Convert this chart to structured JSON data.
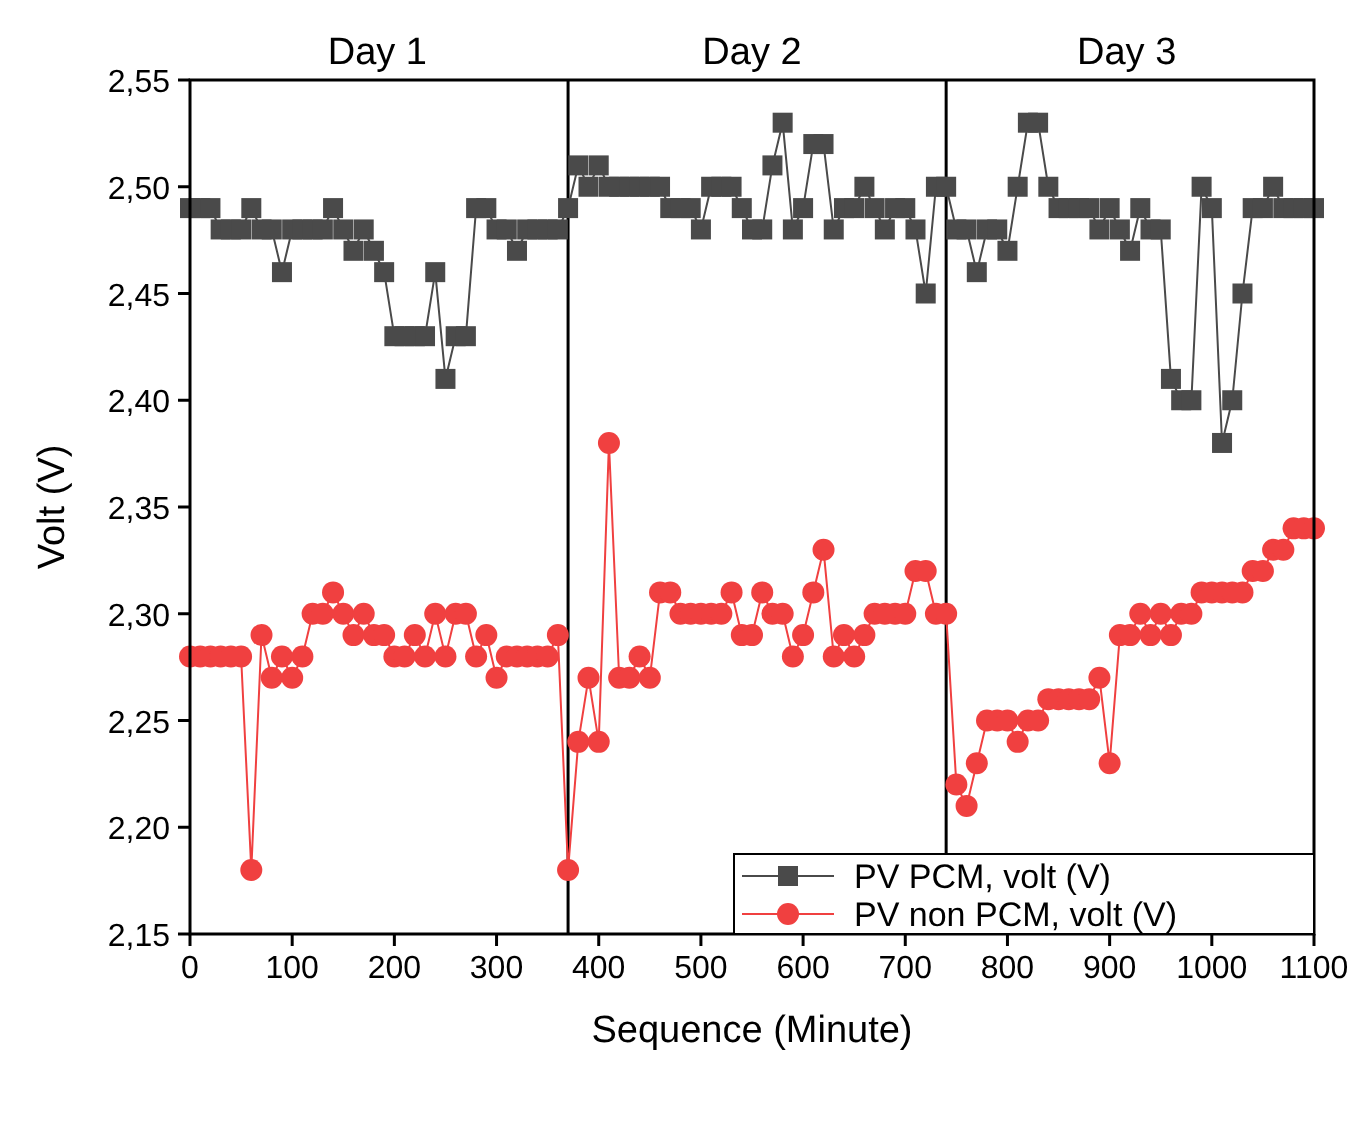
{
  "chart_data": {
    "type": "line",
    "xlabel": "Sequence (Minute)",
    "ylabel": "Volt (V)",
    "x": [
      0,
      10,
      20,
      30,
      40,
      50,
      60,
      70,
      80,
      90,
      100,
      110,
      120,
      130,
      140,
      150,
      160,
      170,
      180,
      190,
      200,
      210,
      220,
      230,
      240,
      250,
      260,
      270,
      280,
      290,
      300,
      310,
      320,
      330,
      340,
      350,
      360,
      370,
      380,
      390,
      400,
      410,
      420,
      430,
      440,
      450,
      460,
      470,
      480,
      490,
      500,
      510,
      520,
      530,
      540,
      550,
      560,
      570,
      580,
      590,
      600,
      610,
      620,
      630,
      640,
      650,
      660,
      670,
      680,
      690,
      700,
      710,
      720,
      730,
      740,
      750,
      760,
      770,
      780,
      790,
      800,
      810,
      820,
      830,
      840,
      850,
      860,
      870,
      880,
      890,
      900,
      910,
      920,
      930,
      940,
      950,
      960,
      970,
      980,
      990,
      1000,
      1010,
      1020,
      1030,
      1040,
      1050,
      1060,
      1070,
      1080,
      1090,
      1100
    ],
    "series": [
      {
        "name": "PV PCM, volt (V)",
        "color": "#4a4a4a",
        "marker": "square",
        "values": [
          2.49,
          2.49,
          2.49,
          2.48,
          2.48,
          2.48,
          2.49,
          2.48,
          2.48,
          2.46,
          2.48,
          2.48,
          2.48,
          2.48,
          2.49,
          2.48,
          2.47,
          2.48,
          2.47,
          2.46,
          2.43,
          2.43,
          2.43,
          2.43,
          2.46,
          2.41,
          2.43,
          2.43,
          2.49,
          2.49,
          2.48,
          2.48,
          2.47,
          2.48,
          2.48,
          2.48,
          2.48,
          2.49,
          2.51,
          2.5,
          2.51,
          2.5,
          2.5,
          2.5,
          2.5,
          2.5,
          2.5,
          2.49,
          2.49,
          2.49,
          2.48,
          2.5,
          2.5,
          2.5,
          2.49,
          2.48,
          2.48,
          2.51,
          2.53,
          2.48,
          2.49,
          2.52,
          2.52,
          2.48,
          2.49,
          2.49,
          2.5,
          2.49,
          2.48,
          2.49,
          2.49,
          2.48,
          2.45,
          2.5,
          2.5,
          2.48,
          2.48,
          2.46,
          2.48,
          2.48,
          2.47,
          2.5,
          2.53,
          2.53,
          2.5,
          2.49,
          2.49,
          2.49,
          2.49,
          2.48,
          2.49,
          2.48,
          2.47,
          2.49,
          2.48,
          2.48,
          2.41,
          2.4,
          2.4,
          2.5,
          2.49,
          2.38,
          2.4,
          2.45,
          2.49,
          2.49,
          2.5,
          2.49,
          2.49,
          2.49,
          2.49
        ]
      },
      {
        "name": "PV non PCM, volt (V)",
        "color": "#f04040",
        "marker": "circle",
        "values": [
          2.28,
          2.28,
          2.28,
          2.28,
          2.28,
          2.28,
          2.18,
          2.29,
          2.27,
          2.28,
          2.27,
          2.28,
          2.3,
          2.3,
          2.31,
          2.3,
          2.29,
          2.3,
          2.29,
          2.29,
          2.28,
          2.28,
          2.29,
          2.28,
          2.3,
          2.28,
          2.3,
          2.3,
          2.28,
          2.29,
          2.27,
          2.28,
          2.28,
          2.28,
          2.28,
          2.28,
          2.29,
          2.18,
          2.24,
          2.27,
          2.24,
          2.38,
          2.27,
          2.27,
          2.28,
          2.27,
          2.31,
          2.31,
          2.3,
          2.3,
          2.3,
          2.3,
          2.3,
          2.31,
          2.29,
          2.29,
          2.31,
          2.3,
          2.3,
          2.28,
          2.29,
          2.31,
          2.33,
          2.28,
          2.29,
          2.28,
          2.29,
          2.3,
          2.3,
          2.3,
          2.3,
          2.32,
          2.32,
          2.3,
          2.3,
          2.22,
          2.21,
          2.23,
          2.25,
          2.25,
          2.25,
          2.24,
          2.25,
          2.25,
          2.26,
          2.26,
          2.26,
          2.26,
          2.26,
          2.27,
          2.23,
          2.29,
          2.29,
          2.3,
          2.29,
          2.3,
          2.29,
          2.3,
          2.3,
          2.31,
          2.31,
          2.31,
          2.31,
          2.31,
          2.32,
          2.32,
          2.33,
          2.33,
          2.34,
          2.34,
          2.34
        ]
      }
    ],
    "xlim": [
      0,
      1100
    ],
    "xticks": [
      0,
      100,
      200,
      300,
      400,
      500,
      600,
      700,
      800,
      900,
      1000,
      1100
    ],
    "ylim": [
      2.15,
      2.55
    ],
    "yticks": [
      {
        "value": 2.15,
        "label": "2,15"
      },
      {
        "value": 2.2,
        "label": "2,20"
      },
      {
        "value": 2.25,
        "label": "2,25"
      },
      {
        "value": 2.3,
        "label": "2,30"
      },
      {
        "value": 2.35,
        "label": "2,35"
      },
      {
        "value": 2.4,
        "label": "2,40"
      },
      {
        "value": 2.45,
        "label": "2,45"
      },
      {
        "value": 2.5,
        "label": "2,50"
      },
      {
        "value": 2.55,
        "label": "2,55"
      }
    ],
    "ref_lines": [
      {
        "axis": "x",
        "value": 370,
        "color": "#000000"
      },
      {
        "axis": "x",
        "value": 740,
        "color": "#000000"
      }
    ],
    "annotations": [
      "Day 1",
      "Day 2",
      "Day 3"
    ],
    "legend": "bottom right",
    "grid": false,
    "line_style": "solid"
  }
}
